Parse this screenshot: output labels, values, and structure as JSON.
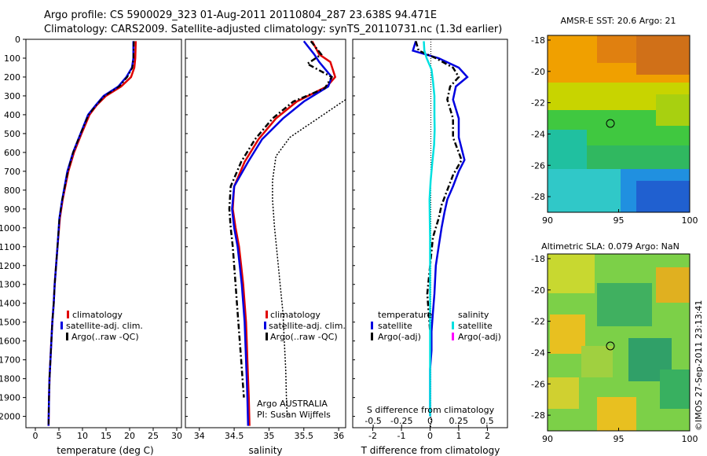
{
  "header": {
    "line1": "Argo profile: CS 5900029_323 01-Aug-2011 20110804_287 23.638S 94.471E",
    "line2": "Climatology: CARS2009. Satellite-adjusted climatology: synTS_20110731.nc (1.3d earlier)"
  },
  "colors": {
    "climatology": "#e00000",
    "satellite": "#0000e0",
    "argo": "#000000",
    "satellite_salinity": "#00e0e0",
    "argo_adj_salinity": "#ff00ff"
  },
  "depth_axis": {
    "ticks": [
      "0",
      "100",
      "200",
      "300",
      "400",
      "500",
      "600",
      "700",
      "800",
      "900",
      "1000",
      "1100",
      "1200",
      "1300",
      "1400",
      "1500",
      "1600",
      "1700",
      "1800",
      "1900",
      "2000"
    ],
    "ylim": [
      0,
      2060
    ]
  },
  "panels": {
    "temperature": {
      "xlabel": "temperature (deg C)",
      "xticks": [
        "0",
        "5",
        "10",
        "15",
        "20",
        "25",
        "30"
      ],
      "legend": [
        "climatology",
        "satellite-adj. clim.",
        "Argo(..raw -QC)"
      ]
    },
    "salinity": {
      "xlabel": "salinity",
      "xticks": [
        "34",
        "34.5",
        "35",
        "35.5",
        "36"
      ],
      "legend": [
        "climatology",
        "satellite-adj. clim.",
        "Argo(..raw -QC)"
      ],
      "annotation1": "Argo AUSTRALIA",
      "annotation2": "PI: Susan Wijffels"
    },
    "difference": {
      "xlabel": "T difference from climatology",
      "top_label": "S difference from climatology",
      "top_ticks": [
        "-0.5",
        "-0.25",
        "0",
        "0.25",
        "0.5"
      ],
      "xticks": [
        "-2",
        "-1",
        "0",
        "1",
        "2"
      ],
      "legend_temp_title": "temperature",
      "legend_sal_title": "salinity",
      "legend_temp_items": [
        "satellite",
        "Argo(-adj)"
      ],
      "legend_sal_items": [
        "satellite",
        "Argo(-adj)"
      ]
    },
    "sst_map": {
      "title": "AMSR-E SST: 20.6 Argo: 21",
      "yticks": [
        "-18",
        "-20",
        "-22",
        "-24",
        "-26",
        "-28"
      ],
      "xticks": [
        "90",
        "95",
        "100"
      ]
    },
    "sla_map": {
      "title": "Altimetric SLA: 0.079 Argo: NaN",
      "yticks": [
        "-18",
        "-20",
        "-22",
        "-24",
        "-26",
        "-28"
      ],
      "xticks": [
        "90",
        "95",
        "100"
      ]
    }
  },
  "stamp": "©IMOS 27-Sep-2011 23:13:41",
  "chart_data": [
    {
      "type": "line",
      "title": "",
      "xlabel": "temperature (deg C)",
      "ylabel": "",
      "xlim": [
        -2,
        31
      ],
      "ylim": [
        2060,
        0
      ],
      "series": [
        {
          "name": "climatology",
          "x": [
            21.3,
            21.2,
            21.0,
            20.3,
            18.2,
            15.0,
            13.0,
            11.5,
            9.8,
            8.2,
            7.0,
            5.8,
            5.2,
            4.7,
            4.4,
            4.1,
            3.9,
            3.6,
            3.4,
            3.2,
            3.0,
            2.9,
            2.8
          ],
          "y": [
            10,
            100,
            150,
            200,
            250,
            300,
            350,
            400,
            500,
            600,
            700,
            850,
            950,
            1100,
            1200,
            1300,
            1400,
            1500,
            1600,
            1700,
            1800,
            1900,
            2050
          ]
        },
        {
          "name": "satellite-adj. clim.",
          "x": [
            20.8,
            20.8,
            20.5,
            19.3,
            17.6,
            14.5,
            12.8,
            11.2,
            9.6,
            8.0,
            6.8,
            5.7,
            5.1,
            4.7,
            4.4,
            4.1,
            3.9,
            3.6,
            3.4,
            3.2,
            3.0,
            2.9,
            2.8
          ],
          "y": [
            10,
            100,
            150,
            200,
            250,
            300,
            350,
            400,
            500,
            600,
            700,
            850,
            950,
            1100,
            1200,
            1300,
            1400,
            1500,
            1600,
            1700,
            1800,
            1900,
            2050
          ]
        },
        {
          "name": "Argo(..raw -QC)",
          "x": [
            20.9,
            20.8,
            20.6,
            19.5,
            17.8,
            14.7,
            12.9,
            11.3,
            9.6,
            8.0,
            6.9,
            5.7,
            5.1,
            4.7,
            4.4,
            4.1,
            3.9,
            3.6,
            3.4,
            3.2,
            3.0,
            2.9,
            2.8
          ],
          "y": [
            10,
            100,
            150,
            200,
            250,
            300,
            350,
            400,
            500,
            600,
            700,
            850,
            950,
            1100,
            1200,
            1300,
            1400,
            1500,
            1600,
            1700,
            1800,
            1900,
            2050
          ]
        }
      ]
    },
    {
      "type": "line",
      "title": "",
      "xlabel": "salinity",
      "ylabel": "",
      "xlim": [
        33.8,
        36.1
      ],
      "ylim": [
        2060,
        0
      ],
      "series": [
        {
          "name": "climatology",
          "x": [
            35.62,
            35.72,
            35.88,
            35.95,
            35.83,
            35.4,
            35.1,
            34.85,
            34.65,
            34.5,
            34.48,
            34.52,
            34.57,
            34.6,
            34.63,
            34.65,
            34.67,
            34.68,
            34.69,
            34.7,
            34.71,
            34.72
          ],
          "y": [
            10,
            80,
            120,
            200,
            250,
            330,
            420,
            530,
            650,
            780,
            900,
            1000,
            1100,
            1200,
            1300,
            1400,
            1500,
            1600,
            1700,
            1800,
            1900,
            2050
          ]
        },
        {
          "name": "satellite-adj. clim.",
          "x": [
            35.5,
            35.65,
            35.72,
            35.9,
            35.85,
            35.5,
            35.2,
            34.9,
            34.7,
            34.5,
            34.47,
            34.5,
            34.55,
            34.58,
            34.61,
            34.63,
            34.65,
            34.66,
            34.67,
            34.68,
            34.69,
            34.7
          ],
          "y": [
            10,
            80,
            120,
            200,
            250,
            330,
            420,
            530,
            650,
            780,
            900,
            1000,
            1100,
            1200,
            1300,
            1400,
            1500,
            1600,
            1700,
            1800,
            1900,
            2050
          ]
        },
        {
          "name": "Argo(..raw -QC)",
          "x": [
            35.6,
            35.75,
            35.55,
            35.9,
            35.8,
            35.35,
            35.05,
            34.8,
            34.6,
            34.45,
            34.43,
            34.45,
            34.48,
            34.5,
            34.52,
            34.54,
            34.56,
            34.58,
            34.6,
            34.62,
            34.64
          ],
          "y": [
            10,
            80,
            130,
            200,
            260,
            330,
            420,
            530,
            650,
            780,
            900,
            1000,
            1100,
            1200,
            1300,
            1400,
            1500,
            1600,
            1700,
            1800,
            1900
          ]
        },
        {
          "name": "",
          "x": [
            36.1,
            35.7,
            35.3,
            35.1,
            35.05,
            35.05,
            35.08,
            35.12,
            35.16,
            35.2,
            35.22,
            35.24,
            35.25,
            35.26
          ],
          "y": [
            320,
            420,
            520,
            620,
            750,
            850,
            1000,
            1150,
            1300,
            1450,
            1600,
            1750,
            1900,
            2000
          ]
        }
      ]
    },
    {
      "type": "line",
      "title": "",
      "xlabel": "T difference from climatology",
      "ylabel": "",
      "xlim": [
        -2.7,
        2.7
      ],
      "ylim": [
        2060,
        0
      ],
      "series": [
        {
          "name": "temperature satellite",
          "x": [
            -0.5,
            -0.6,
            0.3,
            1.0,
            1.3,
            0.9,
            0.8,
            1.0,
            1.0,
            1.2,
            1.0,
            0.8,
            0.6,
            0.5,
            0.4,
            0.3,
            0.2,
            0.15,
            0.1,
            0.05,
            0.05,
            0.0,
            0.0,
            0.0
          ],
          "y": [
            10,
            60,
            100,
            150,
            200,
            250,
            320,
            420,
            520,
            640,
            700,
            780,
            850,
            920,
            1000,
            1100,
            1200,
            1350,
            1450,
            1550,
            1650,
            1750,
            1900,
            2000
          ]
        },
        {
          "name": "temperature Argo(-adj)",
          "x": [
            -0.5,
            -0.4,
            0.2,
            0.8,
            1.0,
            0.7,
            0.6,
            0.8,
            0.8,
            1.1,
            0.8,
            0.6,
            0.4,
            0.3,
            0.1,
            0.0,
            -0.1,
            -0.05,
            0.0
          ],
          "y": [
            10,
            60,
            100,
            150,
            200,
            250,
            320,
            420,
            520,
            640,
            720,
            800,
            880,
            950,
            1050,
            1200,
            1350,
            1450,
            1550
          ]
        },
        {
          "name": "salinity satellite",
          "x": [
            -0.22,
            -0.2,
            -0.12,
            0.05,
            0.1,
            0.15,
            0.15,
            0.16,
            0.14,
            0.08,
            0.02,
            -0.02,
            -0.01,
            0.0,
            0.0,
            0.0,
            0.0,
            0.0,
            0.0,
            0.0
          ],
          "y": [
            10,
            60,
            100,
            160,
            220,
            300,
            400,
            480,
            560,
            650,
            750,
            850,
            950,
            1050,
            1200,
            1400,
            1600,
            1800,
            1900,
            2000
          ]
        }
      ]
    },
    {
      "type": "heatmap",
      "title": "AMSR-E SST: 20.6 Argo: 21",
      "xlabel": "",
      "ylabel": "",
      "xlim": [
        90,
        100
      ],
      "ylim": [
        -29,
        -17.7
      ],
      "argo_position": [
        94.47,
        -23.64
      ]
    },
    {
      "type": "heatmap",
      "title": "Altimetric SLA: 0.079 Argo: NaN",
      "xlabel": "",
      "ylabel": "",
      "xlim": [
        90,
        100
      ],
      "ylim": [
        -29,
        -17.7
      ],
      "argo_position": [
        94.47,
        -23.64
      ]
    }
  ]
}
